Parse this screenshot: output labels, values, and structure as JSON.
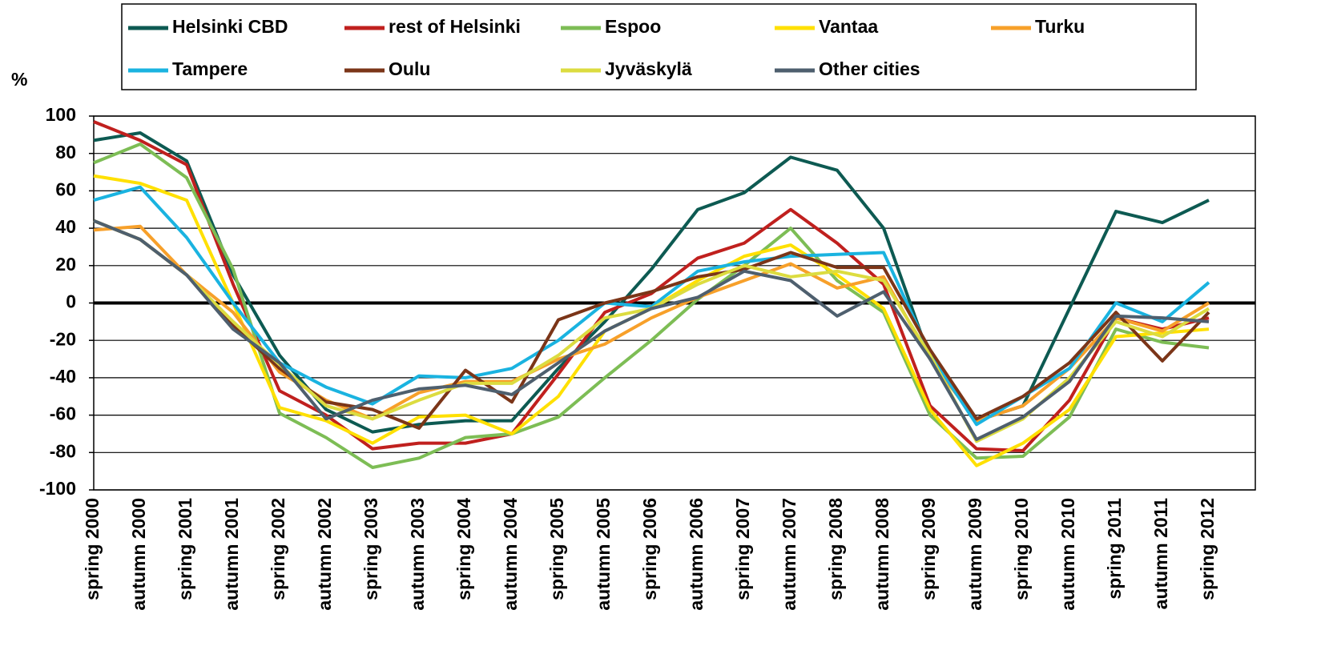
{
  "chart_data": {
    "type": "line",
    "y_label": "%",
    "categories": [
      "spring 2000",
      "autumn 2000",
      "spring 2001",
      "autumn 2001",
      "spring 2002",
      "autumn 2002",
      "spring 2003",
      "autumn 2003",
      "spring 2004",
      "autumn 2004",
      "spring 2005",
      "autumn 2005",
      "spring 2006",
      "autumn 2006",
      "spring 2007",
      "autumn 2007",
      "spring 2008",
      "autumn 2008",
      "spring 2009",
      "autumn 2009",
      "spring 2010",
      "autumn 2010",
      "spring 2011",
      "autumn 2011",
      "spring 2012"
    ],
    "ylim": [
      -100,
      100
    ],
    "yticks": [
      -100,
      -80,
      -60,
      -40,
      -20,
      0,
      20,
      40,
      60,
      80,
      100
    ],
    "grid": true,
    "series": [
      {
        "name": "Helsinki CBD",
        "color": "#0d5a52",
        "values": [
          87,
          91,
          76,
          15,
          -28,
          -57,
          -69,
          -65,
          -63,
          -63,
          -35,
          -10,
          18,
          50,
          59,
          78,
          71,
          40,
          -30,
          -63,
          -55,
          -3,
          49,
          43,
          55
        ]
      },
      {
        "name": "rest of Helsinki",
        "color": "#c0201e",
        "values": [
          97,
          87,
          74,
          10,
          -47,
          -60,
          -78,
          -75,
          -75,
          -70,
          -38,
          -5,
          5,
          24,
          32,
          50,
          32,
          10,
          -55,
          -78,
          -79,
          -52,
          -8,
          -14,
          -8
        ]
      },
      {
        "name": "Espoo",
        "color": "#7dbd55",
        "values": [
          75,
          85,
          67,
          18,
          -59,
          -72,
          -88,
          -83,
          -72,
          -70,
          -61,
          -40,
          -20,
          2,
          20,
          40,
          12,
          -5,
          -60,
          -83,
          -82,
          -61,
          -14,
          -21,
          -24
        ]
      },
      {
        "name": "Vantaa",
        "color": "#ffe000",
        "values": [
          68,
          64,
          55,
          0,
          -56,
          -63,
          -75,
          -61,
          -60,
          -70,
          -50,
          -15,
          -3,
          12,
          25,
          31,
          15,
          -3,
          -57,
          -87,
          -75,
          -57,
          -18,
          -16,
          -14
        ]
      },
      {
        "name": "Turku",
        "color": "#f7a02a",
        "values": [
          39,
          41,
          15,
          -5,
          -37,
          -52,
          -62,
          -48,
          -42,
          -42,
          -30,
          -22,
          -8,
          3,
          12,
          21,
          8,
          14,
          -30,
          -63,
          -55,
          -35,
          -8,
          -15,
          0
        ]
      },
      {
        "name": "Tampere",
        "color": "#1ab3e0",
        "values": [
          55,
          62,
          35,
          0,
          -32,
          -45,
          -54,
          -39,
          -40,
          -35,
          -20,
          0,
          -2,
          17,
          22,
          25,
          26,
          27,
          -27,
          -65,
          -50,
          -35,
          0,
          -10,
          11
        ]
      },
      {
        "name": "Oulu",
        "color": "#7b3518",
        "values": [
          44,
          34,
          15,
          -12,
          -35,
          -53,
          -57,
          -67,
          -36,
          -53,
          -9,
          0,
          6,
          14,
          18,
          27,
          19,
          19,
          -25,
          -62,
          -50,
          -32,
          -5,
          -31,
          -5
        ]
      },
      {
        "name": "Jyväskylä",
        "color": "#dcdc40",
        "values": [
          44,
          34,
          15,
          -10,
          -33,
          -55,
          -62,
          -52,
          -43,
          -43,
          -28,
          -8,
          -3,
          10,
          20,
          14,
          17,
          12,
          -28,
          -74,
          -62,
          -40,
          -10,
          -18,
          -3
        ]
      },
      {
        "name": "Other cities",
        "color": "#4e5f6e",
        "values": [
          44,
          34,
          15,
          -14,
          -32,
          -62,
          -52,
          -46,
          -44,
          -49,
          -32,
          -15,
          -3,
          3,
          17,
          12,
          -7,
          6,
          -30,
          -73,
          -61,
          -42,
          -7,
          -8,
          -10
        ]
      }
    ]
  }
}
